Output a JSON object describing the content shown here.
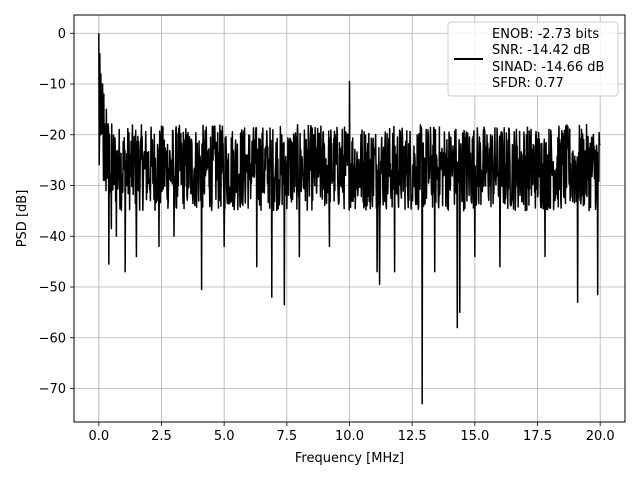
{
  "chart_data": {
    "type": "line",
    "title": "",
    "xlabel": "Frequency [MHz]",
    "ylabel": "PSD [dB]",
    "xlim": [
      -0.99,
      20.99
    ],
    "ylim": [
      -76.6,
      3.6
    ],
    "xticks": [
      0.0,
      2.5,
      5.0,
      7.5,
      10.0,
      12.5,
      15.0,
      17.5,
      20.0
    ],
    "xtick_labels": [
      "0.0",
      "2.5",
      "5.0",
      "7.5",
      "10.0",
      "12.5",
      "15.0",
      "17.5",
      "20.0"
    ],
    "yticks": [
      0,
      -10,
      -20,
      -30,
      -40,
      -50,
      -60,
      -70
    ],
    "ytick_labels": [
      "0",
      "−10",
      "−20",
      "−30",
      "−40",
      "−50",
      "−60",
      "−70"
    ],
    "grid": true,
    "legend_position": "top-right",
    "series": [
      {
        "legend_lines": [
          "ENOB: -2.73 bits",
          "SNR: -14.42 dB",
          "SINAD: -14.66 dB",
          "SFDR: 0.77"
        ],
        "color": "#000000",
        "x_range": [
          0.0,
          20.0
        ],
        "noise_floor_range": [
          -35,
          -18
        ],
        "spikes": [
          {
            "x": 0.0,
            "y": 0
          },
          {
            "x": 0.04,
            "y": -4
          },
          {
            "x": 0.08,
            "y": -8
          },
          {
            "x": 0.15,
            "y": -10
          },
          {
            "x": 0.2,
            "y": -12
          },
          {
            "x": 0.3,
            "y": -15
          },
          {
            "x": 10.0,
            "y": -9.5
          }
        ],
        "dips": [
          {
            "x": 0.4,
            "y": -45.5
          },
          {
            "x": 0.5,
            "y": -38.5
          },
          {
            "x": 0.7,
            "y": -40
          },
          {
            "x": 1.05,
            "y": -47
          },
          {
            "x": 1.5,
            "y": -44
          },
          {
            "x": 2.4,
            "y": -42
          },
          {
            "x": 3.0,
            "y": -40
          },
          {
            "x": 4.1,
            "y": -50.5
          },
          {
            "x": 5.0,
            "y": -42
          },
          {
            "x": 6.3,
            "y": -46
          },
          {
            "x": 6.9,
            "y": -52
          },
          {
            "x": 7.4,
            "y": -53.5
          },
          {
            "x": 8.0,
            "y": -44
          },
          {
            "x": 9.2,
            "y": -42
          },
          {
            "x": 11.1,
            "y": -47
          },
          {
            "x": 11.2,
            "y": -49.5
          },
          {
            "x": 11.8,
            "y": -47
          },
          {
            "x": 12.9,
            "y": -73
          },
          {
            "x": 13.4,
            "y": -47
          },
          {
            "x": 14.3,
            "y": -58
          },
          {
            "x": 14.4,
            "y": -55
          },
          {
            "x": 15.0,
            "y": -44
          },
          {
            "x": 16.0,
            "y": -46
          },
          {
            "x": 17.8,
            "y": -44
          },
          {
            "x": 19.1,
            "y": -53
          },
          {
            "x": 19.9,
            "y": -51.5
          }
        ]
      }
    ]
  }
}
